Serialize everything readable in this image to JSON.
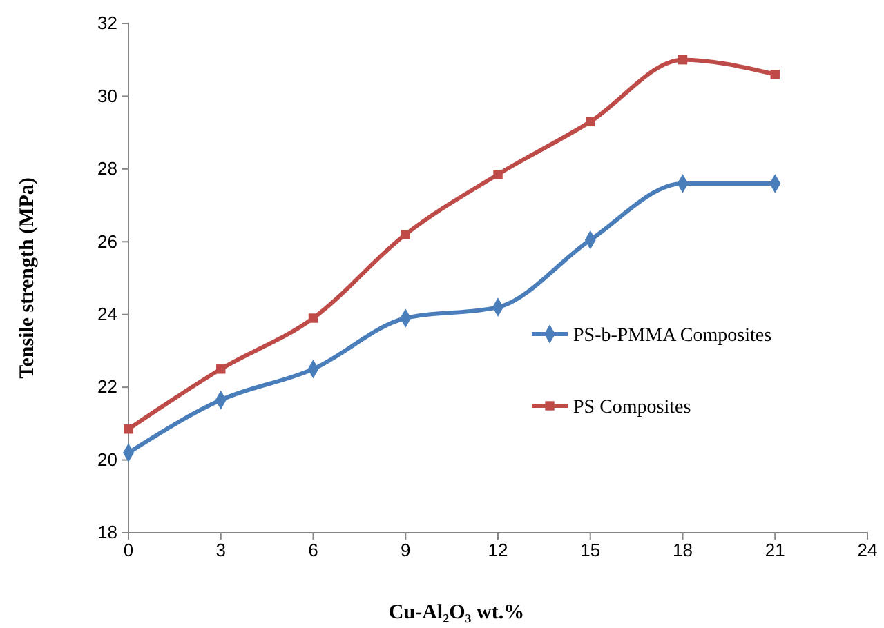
{
  "chart_data": {
    "type": "line",
    "xlabel": "Cu-Al₂O₃  wt.%",
    "ylabel": "Tensile strength (MPa)",
    "x": [
      0,
      3,
      6,
      9,
      12,
      15,
      18,
      21
    ],
    "series": [
      {
        "name": "PS-b-PMMA Composites",
        "color": "#4a7ebb",
        "marker": "diamond",
        "values": [
          20.2,
          21.65,
          22.5,
          23.9,
          24.2,
          26.05,
          27.6,
          27.6
        ]
      },
      {
        "name": "PS Composites",
        "color": "#be4b48",
        "marker": "square",
        "values": [
          20.85,
          22.5,
          23.9,
          26.2,
          27.85,
          29.3,
          31.0,
          30.6
        ]
      }
    ],
    "xlim": [
      0,
      24
    ],
    "xticks": [
      0,
      3,
      6,
      9,
      12,
      15,
      18,
      21,
      24
    ],
    "ylim": [
      18,
      32
    ],
    "yticks": [
      18,
      20,
      22,
      24,
      26,
      28,
      30,
      32
    ],
    "grid": false,
    "legend": "right",
    "line_style": "solid"
  }
}
